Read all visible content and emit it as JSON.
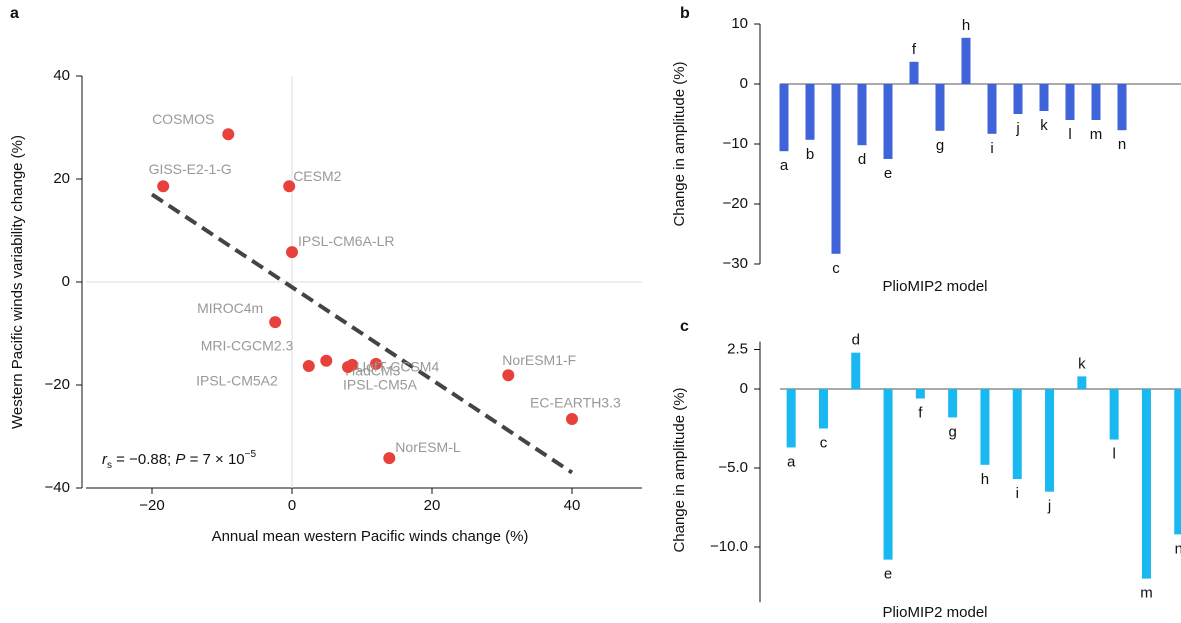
{
  "chart_data": [
    {
      "type": "scatter",
      "panel_label": "a",
      "x_label": "Annual mean western Pacific winds change (%)",
      "y_label": "Western Pacific winds variability change (%)",
      "labels": [
        "COSMOS",
        "GISS-E2-1-G",
        "CESM2",
        "IPSL-CM6A-LR",
        "MIROC4m",
        "MRI-CGCM2.3",
        "IPSL-CM5A2",
        "HadCM3",
        "IPSL-CM5A",
        "UofT-CCSM4",
        "NorESM1-F",
        "EC-EARTH3.3",
        "NorESM-L"
      ],
      "x": [
        -9.1,
        -18.4,
        -0.4,
        0,
        -2.4,
        4.9,
        2.4,
        8.6,
        8.0,
        12.0,
        30.9,
        40.0,
        13.9
      ],
      "values": [
        28.7,
        18.6,
        18.6,
        5.8,
        -7.8,
        -15.3,
        -16.3,
        -16.1,
        -16.5,
        -15.9,
        -18.1,
        -26.6,
        -34.2
      ],
      "color": "#e8413c",
      "fit_line": {
        "x": [
          -20,
          40
        ],
        "y": [
          17,
          -37
        ],
        "color": "#444444"
      },
      "annotation": [
        "r",
        "s",
        " = −0.88; ",
        "P",
        " = 7 × 10",
        "−5"
      ],
      "xlim": [
        -30,
        50
      ],
      "ylim": [
        -40,
        40
      ],
      "xticks": [
        {
          "value": -20,
          "label": "−20"
        },
        0,
        20,
        40
      ],
      "yticks": [
        {
          "value": -40,
          "label": "−40"
        },
        {
          "value": -20,
          "label": "−20"
        },
        0,
        20,
        40
      ]
    },
    {
      "type": "bar",
      "panel_label": "b",
      "x_label": "PlioMIP2 model",
      "y_label": "Change in amplitude (%)",
      "categories": [
        "a",
        "b",
        "c",
        "d",
        "e",
        "f",
        "g",
        "h",
        "i",
        "j",
        "k",
        "l",
        "m",
        "n"
      ],
      "values": [
        -11.2,
        -9.3,
        -28.3,
        -10.2,
        -12.5,
        3.7,
        -7.8,
        7.7,
        -8.3,
        -5.0,
        -4.5,
        -6.0,
        -6.0,
        -7.7
      ],
      "color": "#3f63d9",
      "ylim": [
        -30,
        10
      ],
      "yticks": [
        {
          "value": -30,
          "label": "−30"
        },
        {
          "value": -20,
          "label": "−20"
        },
        {
          "value": -10,
          "label": "−10"
        },
        0,
        10
      ]
    },
    {
      "type": "bar",
      "panel_label": "c",
      "x_label": "PlioMIP2 model",
      "y_label": "Change in amplitude (%)",
      "categories": [
        "a",
        "c",
        "d",
        "e",
        "f",
        "g",
        "h",
        "i",
        "j",
        "k",
        "l",
        "m",
        "n"
      ],
      "values": [
        -3.7,
        -2.5,
        2.3,
        -10.8,
        -0.6,
        -1.8,
        -4.8,
        -5.7,
        -6.5,
        0.8,
        -3.2,
        -12.0,
        -9.2
      ],
      "color": "#1ab8f0",
      "ylim": [
        -13.5,
        3
      ],
      "yticks": [
        {
          "value": -10,
          "label": "−10.0"
        },
        {
          "value": -5,
          "label": "−5.0"
        },
        0,
        2.5
      ]
    }
  ]
}
